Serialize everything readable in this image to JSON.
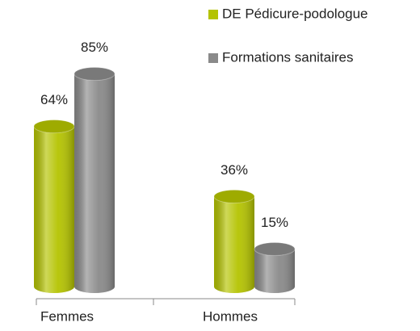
{
  "chart_data": {
    "type": "bar",
    "categories": [
      "Femmes",
      "Hommes"
    ],
    "series": [
      {
        "name": "DE Pédicure-podologue",
        "color": "#b4c300",
        "values": [
          64,
          36
        ],
        "value_labels": [
          "64%",
          "36%"
        ]
      },
      {
        "name": "Formations sanitaires",
        "color": "#8a8a8a",
        "values": [
          85,
          15
        ],
        "value_labels": [
          "85%",
          "15%"
        ]
      }
    ],
    "ylim": [
      0,
      100
    ],
    "legend": "top-right",
    "grid": false
  }
}
